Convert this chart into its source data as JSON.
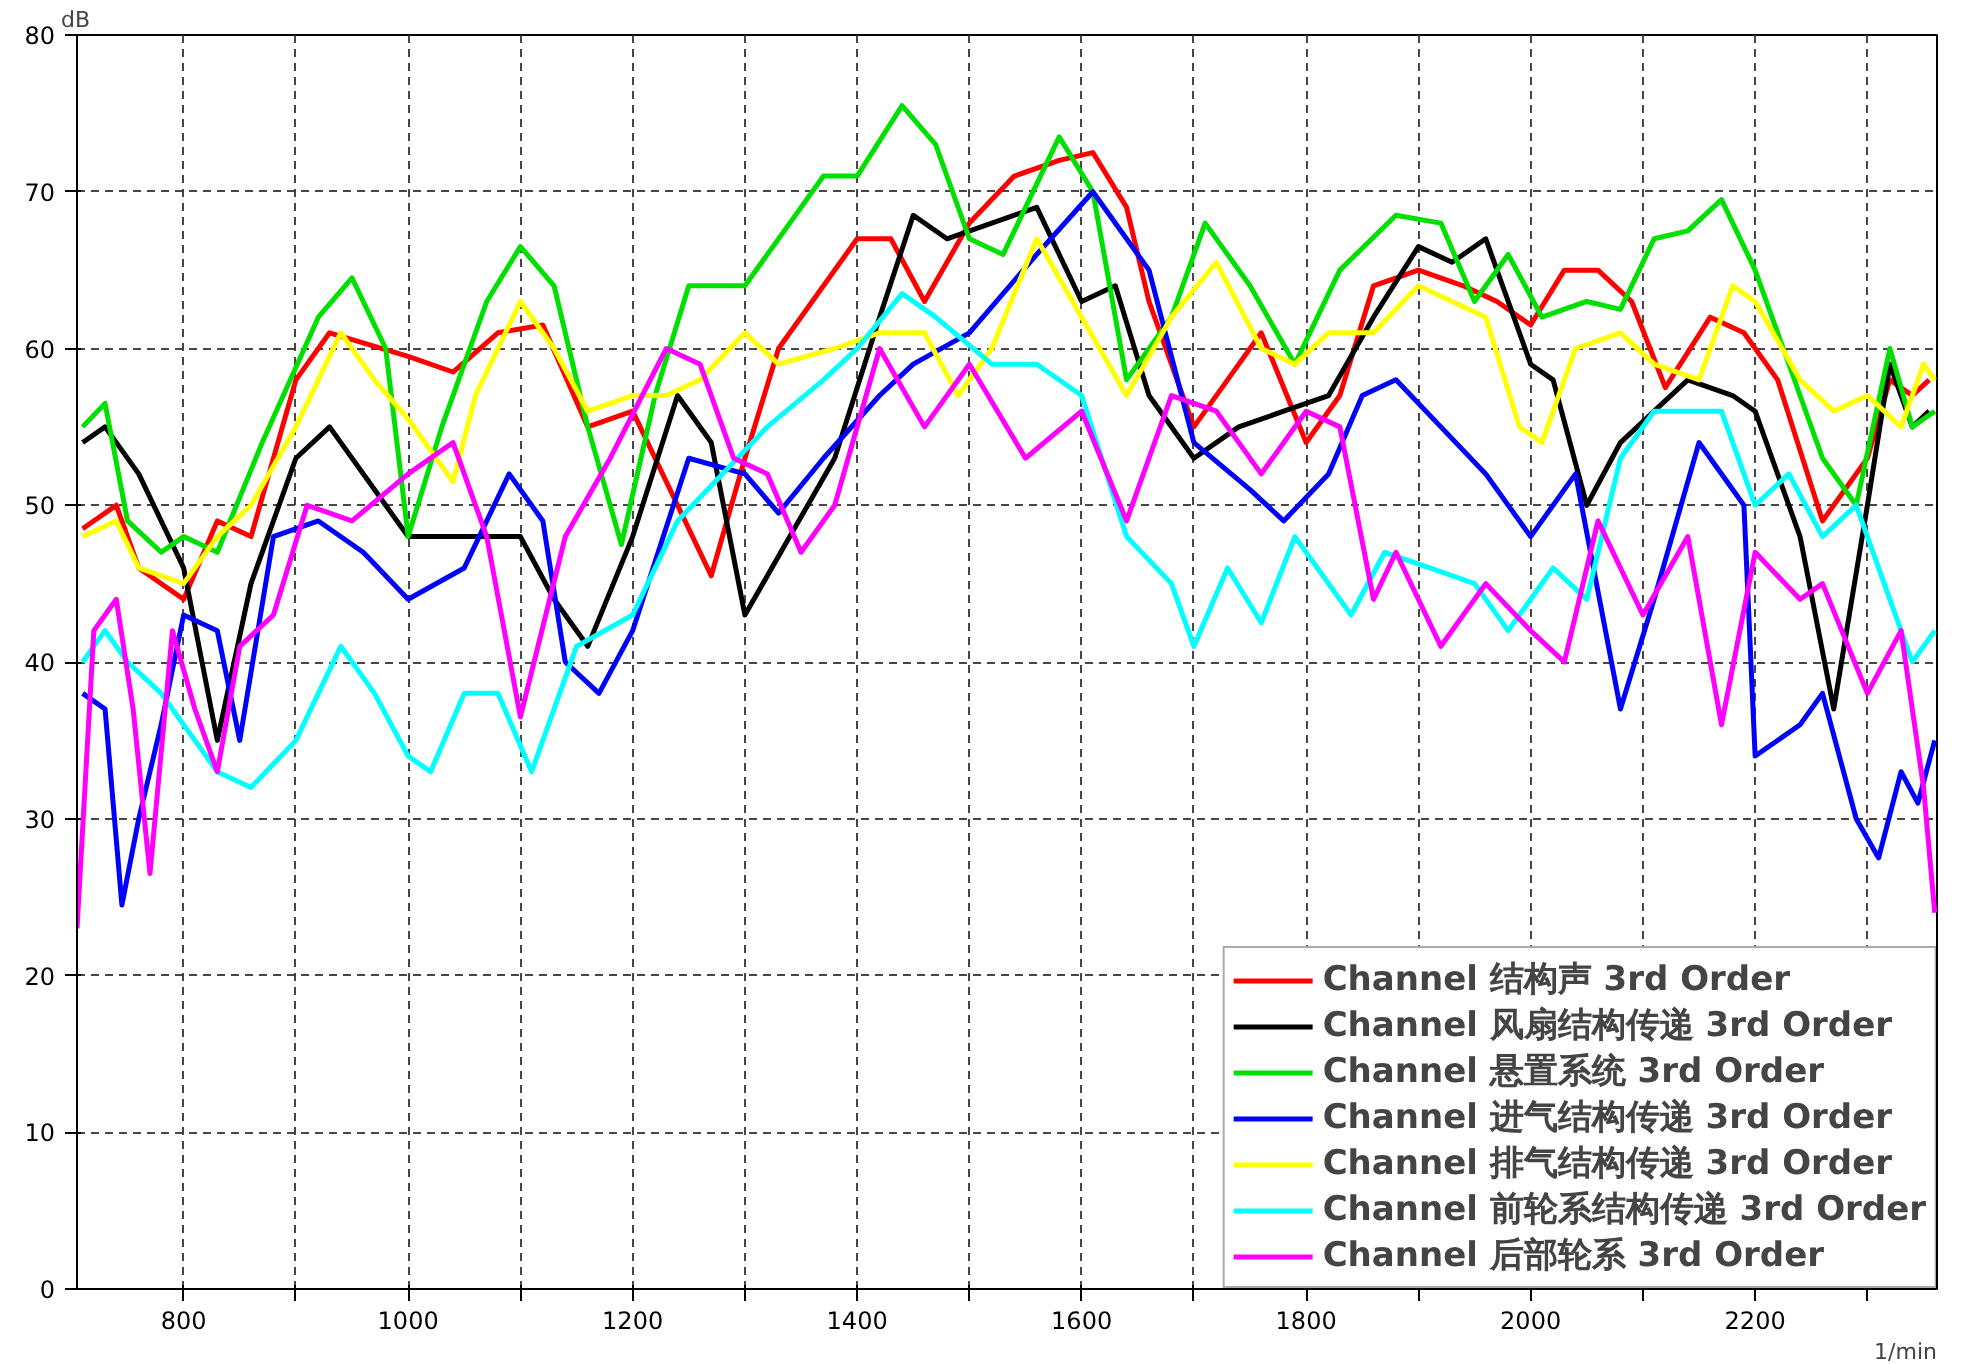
{
  "chart_data": {
    "type": "line",
    "xlabel": "1/min",
    "ylabel": "dB",
    "xlim": [
      705,
      2362
    ],
    "ylim": [
      0,
      80
    ],
    "xticks": [
      800,
      {
        "value": 900,
        "label": null
      },
      1000,
      {
        "value": 1100,
        "label": null
      },
      1200,
      {
        "value": 1300,
        "label": null
      },
      1400,
      {
        "value": 1500,
        "label": null
      },
      1600,
      {
        "value": 1700,
        "label": null
      },
      1800,
      {
        "value": 1900,
        "label": null
      },
      2000,
      {
        "value": 2100,
        "label": null
      },
      2200,
      {
        "value": 2300,
        "label": null
      }
    ],
    "yticks": [
      0,
      10,
      20,
      30,
      40,
      50,
      60,
      70,
      80
    ],
    "grid": true,
    "legend": "bottom right",
    "marker": "none",
    "line_style": "solid",
    "series": [
      {
        "name": "Channel 结构声 3rd Order",
        "color": "#ff0000",
        "x": [
          710,
          740,
          760,
          800,
          830,
          860,
          900,
          930,
          1000,
          1040,
          1080,
          1120,
          1160,
          1200,
          1240,
          1270,
          1300,
          1330,
          1400,
          1430,
          1460,
          1500,
          1540,
          1580,
          1610,
          1640,
          1660,
          1700,
          1730,
          1760,
          1800,
          1830,
          1860,
          1900,
          1940,
          1970,
          2000,
          2030,
          2060,
          2090,
          2120,
          2160,
          2190,
          2220,
          2260,
          2300,
          2320,
          2340,
          2355
        ],
        "values": [
          48.5,
          50,
          46,
          44,
          49,
          48,
          58,
          61,
          59.5,
          58.5,
          61,
          61.5,
          55,
          56,
          50,
          45.5,
          53,
          60,
          67,
          67,
          63,
          68,
          71,
          72,
          72.5,
          69,
          63,
          55,
          58,
          61,
          54,
          57,
          64,
          65,
          64,
          63,
          61.5,
          65,
          65,
          63,
          57.5,
          62,
          61,
          58,
          49,
          53,
          58,
          57,
          58
        ]
      },
      {
        "name": "Channel 风扇结构传递 3rd Order",
        "color": "#000000",
        "x": [
          710,
          730,
          760,
          800,
          830,
          860,
          900,
          930,
          970,
          1000,
          1050,
          1100,
          1130,
          1160,
          1200,
          1240,
          1270,
          1300,
          1340,
          1380,
          1420,
          1450,
          1480,
          1520,
          1560,
          1600,
          1630,
          1660,
          1700,
          1740,
          1780,
          1820,
          1860,
          1900,
          1930,
          1960,
          2000,
          2020,
          2050,
          2080,
          2110,
          2140,
          2180,
          2200,
          2240,
          2270,
          2300,
          2320,
          2340,
          2355
        ],
        "values": [
          54,
          55,
          52,
          46,
          35,
          45,
          53,
          55,
          51,
          48,
          48,
          48,
          44,
          41,
          48,
          57,
          54,
          43,
          48,
          53,
          62,
          68.5,
          67,
          68,
          69,
          63,
          64,
          57,
          53,
          55,
          56,
          57,
          62,
          66.5,
          65.5,
          67,
          59,
          58,
          50,
          54,
          56,
          58,
          57,
          56,
          48,
          37,
          50,
          59,
          55,
          56
        ]
      },
      {
        "name": "Channel 悬置系统 3rd Order",
        "color": "#00e000",
        "x": [
          710,
          730,
          750,
          780,
          800,
          830,
          870,
          920,
          950,
          980,
          1000,
          1030,
          1070,
          1100,
          1130,
          1160,
          1190,
          1220,
          1250,
          1300,
          1340,
          1370,
          1400,
          1440,
          1470,
          1500,
          1530,
          1580,
          1610,
          1640,
          1680,
          1710,
          1750,
          1790,
          1830,
          1880,
          1920,
          1950,
          1980,
          2010,
          2050,
          2080,
          2110,
          2140,
          2170,
          2200,
          2240,
          2260,
          2290,
          2320,
          2340,
          2360
        ],
        "values": [
          55,
          56.5,
          49,
          47,
          48,
          47,
          54,
          62,
          64.5,
          60,
          48,
          55,
          63,
          66.5,
          64,
          55,
          47.5,
          57,
          64,
          64,
          68,
          71,
          71,
          75.5,
          73,
          67,
          66,
          73.5,
          70,
          58,
          62,
          68,
          64,
          59,
          65,
          68.5,
          68,
          63,
          66,
          62,
          63,
          62.5,
          67,
          67.5,
          69.5,
          65,
          57,
          53,
          50,
          60,
          55,
          56
        ]
      },
      {
        "name": "Channel 进气结构传递 3rd Order",
        "color": "#0000ff",
        "x": [
          710,
          730,
          745,
          760,
          780,
          800,
          830,
          850,
          880,
          920,
          960,
          1000,
          1050,
          1090,
          1120,
          1140,
          1170,
          1200,
          1250,
          1300,
          1330,
          1370,
          1420,
          1450,
          1500,
          1560,
          1610,
          1660,
          1700,
          1750,
          1780,
          1820,
          1850,
          1880,
          1920,
          1960,
          2000,
          2040,
          2080,
          2110,
          2150,
          2190,
          2200,
          2240,
          2260,
          2290,
          2310,
          2330,
          2345,
          2360
        ],
        "values": [
          38,
          37,
          24.5,
          30,
          36,
          43,
          42,
          35,
          48,
          49,
          47,
          44,
          46,
          52,
          49,
          40,
          38,
          42,
          53,
          52,
          49.5,
          53,
          57,
          59,
          61,
          66,
          70,
          65,
          54,
          51,
          49,
          52,
          57,
          58,
          55,
          52,
          48,
          52,
          37,
          44,
          54,
          50,
          34,
          36,
          38,
          30,
          27.5,
          33,
          31,
          35
        ]
      },
      {
        "name": "Channel 排气结构传递 3rd Order",
        "color": "#ffff00",
        "x": [
          710,
          740,
          760,
          800,
          830,
          860,
          900,
          940,
          970,
          1000,
          1040,
          1060,
          1100,
          1130,
          1160,
          1200,
          1230,
          1260,
          1300,
          1330,
          1380,
          1420,
          1460,
          1490,
          1520,
          1560,
          1600,
          1640,
          1680,
          1720,
          1760,
          1790,
          1820,
          1860,
          1900,
          1930,
          1960,
          1990,
          2010,
          2040,
          2080,
          2110,
          2150,
          2180,
          2200,
          2240,
          2270,
          2300,
          2330,
          2350,
          2360
        ],
        "values": [
          48,
          49,
          46,
          45,
          48,
          50,
          55,
          61,
          58,
          55.5,
          51.5,
          57,
          63,
          60,
          56,
          57,
          57,
          58,
          61,
          59,
          60,
          61,
          61,
          57,
          60,
          67,
          62,
          57,
          62,
          65.5,
          60,
          59,
          61,
          61,
          64,
          63,
          62,
          55,
          54,
          60,
          61,
          59,
          58,
          64,
          63,
          58,
          56,
          57,
          55,
          59,
          58
        ]
      },
      {
        "name": "Channel 前轮系结构传递 3rd Order",
        "color": "#00ffff",
        "x": [
          710,
          730,
          750,
          780,
          800,
          830,
          860,
          900,
          940,
          970,
          1000,
          1020,
          1050,
          1080,
          1110,
          1150,
          1200,
          1240,
          1280,
          1320,
          1370,
          1400,
          1440,
          1470,
          1520,
          1560,
          1600,
          1640,
          1680,
          1700,
          1730,
          1760,
          1790,
          1810,
          1840,
          1870,
          1910,
          1950,
          1980,
          2020,
          2050,
          2080,
          2110,
          2140,
          2170,
          2200,
          2230,
          2260,
          2290,
          2320,
          2340,
          2360
        ],
        "values": [
          40,
          42,
          40,
          38,
          36,
          33,
          32,
          35,
          41,
          38,
          34,
          33,
          38,
          38,
          33,
          41,
          43,
          49,
          52,
          55,
          58,
          60,
          63.5,
          62,
          59,
          59,
          57,
          48,
          45,
          41,
          46,
          42.5,
          48,
          46,
          43,
          47,
          46,
          45,
          42,
          46,
          44,
          53,
          56,
          56,
          56,
          50,
          52,
          48,
          50,
          44,
          40,
          42
        ]
      },
      {
        "name": "Channel 后部轮系 3rd Order",
        "color": "#ff00ff",
        "x": [
          705,
          720,
          740,
          755,
          770,
          790,
          810,
          830,
          850,
          880,
          910,
          950,
          1000,
          1040,
          1070,
          1100,
          1140,
          1180,
          1230,
          1260,
          1290,
          1320,
          1350,
          1380,
          1420,
          1460,
          1500,
          1550,
          1600,
          1640,
          1680,
          1720,
          1760,
          1800,
          1830,
          1860,
          1880,
          1920,
          1960,
          2000,
          2030,
          2060,
          2100,
          2140,
          2170,
          2200,
          2240,
          2260,
          2300,
          2330,
          2350,
          2360
        ],
        "values": [
          23,
          42,
          44,
          37,
          26.5,
          42,
          37,
          33,
          41,
          43,
          50,
          49,
          52,
          54,
          48,
          36.5,
          48,
          53,
          60,
          59,
          53,
          52,
          47,
          50,
          60,
          55,
          59,
          53,
          56,
          49,
          57,
          56,
          52,
          56,
          55,
          44,
          47,
          41,
          45,
          42,
          40,
          49,
          43,
          48,
          36,
          47,
          44,
          45,
          38,
          42,
          32,
          24
        ]
      }
    ]
  }
}
